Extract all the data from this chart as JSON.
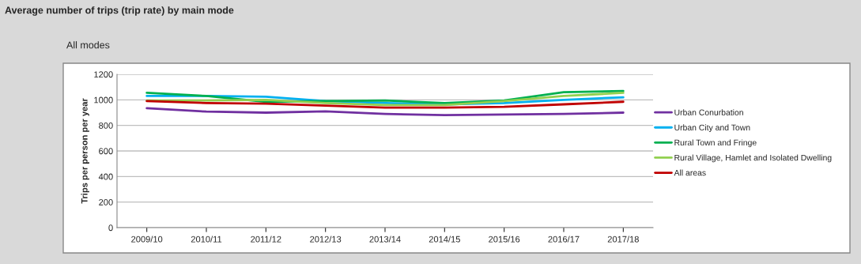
{
  "chart_data": {
    "type": "line",
    "title": "Average number of trips (trip rate) by main mode",
    "subtitle": "All modes",
    "ylabel": "Trips per person per year",
    "categories": [
      "2009/10",
      "2010/11",
      "2011/12",
      "2012/13",
      "2013/14",
      "2014/15",
      "2015/16",
      "2016/17",
      "2017/18"
    ],
    "series": [
      {
        "name": "Urban Conurbation",
        "color": "#7030a0",
        "values": [
          935,
          908,
          900,
          910,
          890,
          880,
          885,
          890,
          900
        ]
      },
      {
        "name": "Urban City and Town",
        "color": "#00b0f0",
        "values": [
          1030,
          1030,
          1025,
          990,
          975,
          965,
          975,
          1000,
          1020
        ]
      },
      {
        "name": "Rural Town and Fringe",
        "color": "#00b050",
        "values": [
          1055,
          1030,
          985,
          990,
          995,
          975,
          995,
          1060,
          1070
        ]
      },
      {
        "name": "Rural Village, Hamlet and Isolated Dwelling",
        "color": "#92d050",
        "values": [
          995,
          995,
          1000,
          975,
          960,
          960,
          990,
          1030,
          1055
        ]
      },
      {
        "name": "All areas",
        "color": "#c00000",
        "values": [
          990,
          975,
          970,
          955,
          940,
          940,
          945,
          965,
          985
        ]
      }
    ],
    "ylim": [
      0,
      1200
    ],
    "yticks": [
      0,
      200,
      400,
      600,
      800,
      1000,
      1200
    ],
    "grid": "y",
    "legend": "right"
  }
}
